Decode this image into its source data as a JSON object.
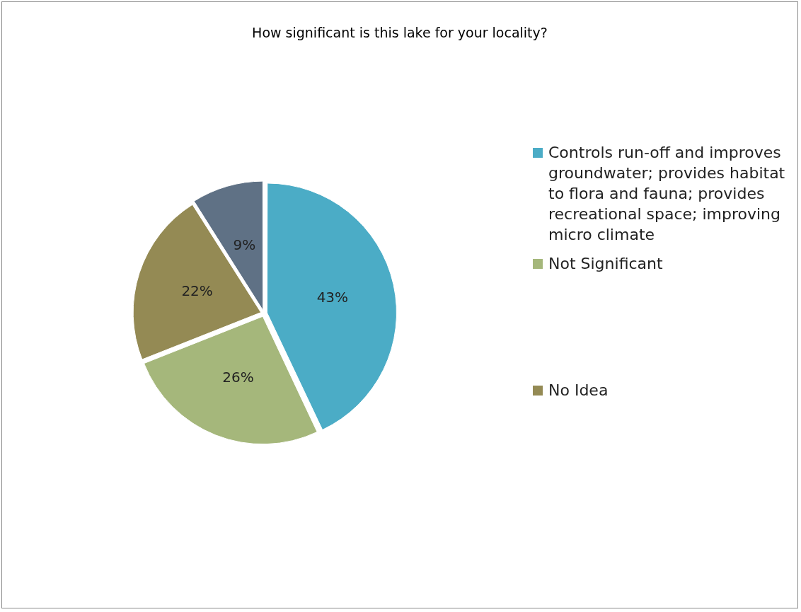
{
  "chart_data": {
    "type": "pie",
    "title": "How significant is this lake for your locality?",
    "categories": [
      "Controls run-off and improves groundwater; provides habitat to flora and fauna; provides recreational space; improving micro climate",
      "Not Significant",
      "No Idea",
      null
    ],
    "values": [
      43,
      26,
      22,
      9
    ],
    "colors": [
      "#4bacc6",
      "#a5b77b",
      "#948a54",
      "#5f7185"
    ],
    "value_labels": [
      "43%",
      "26%",
      "22%",
      "9%"
    ],
    "legend": "right"
  }
}
